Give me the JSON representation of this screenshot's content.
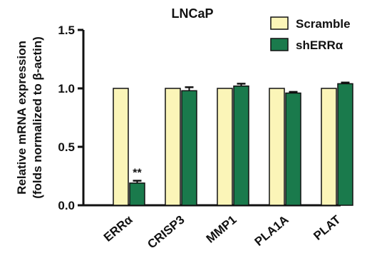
{
  "chart_data": {
    "type": "bar",
    "title": "LNCaP",
    "ylabel_line1": "Relative mRNA expression",
    "ylabel_line2": "(folds normalized to β-actin)",
    "xlabel": "",
    "categories": [
      "ERRα",
      "CRISP3",
      "MMP1",
      "PLA1A",
      "PLAT"
    ],
    "series": [
      {
        "name": "Scramble",
        "color": "#fbf5b8",
        "values": [
          1.0,
          1.0,
          1.0,
          1.0,
          1.0
        ],
        "errors": [
          0,
          0,
          0,
          0,
          0
        ]
      },
      {
        "name": "shERRα",
        "color": "#1a7a4c",
        "values": [
          0.19,
          0.98,
          1.02,
          0.96,
          1.04
        ],
        "errors": [
          0.02,
          0.03,
          0.02,
          0.01,
          0.01
        ]
      }
    ],
    "ylim": [
      0.0,
      1.5
    ],
    "yticks": [
      "0.0",
      "0.5",
      "1.0",
      "1.5"
    ],
    "yticks_values": [
      0,
      0.5,
      1.0,
      1.5
    ],
    "annotations": [
      {
        "category_index": 0,
        "series_index": 1,
        "text": "**"
      }
    ],
    "legend_position": "top-right",
    "grid": false
  }
}
